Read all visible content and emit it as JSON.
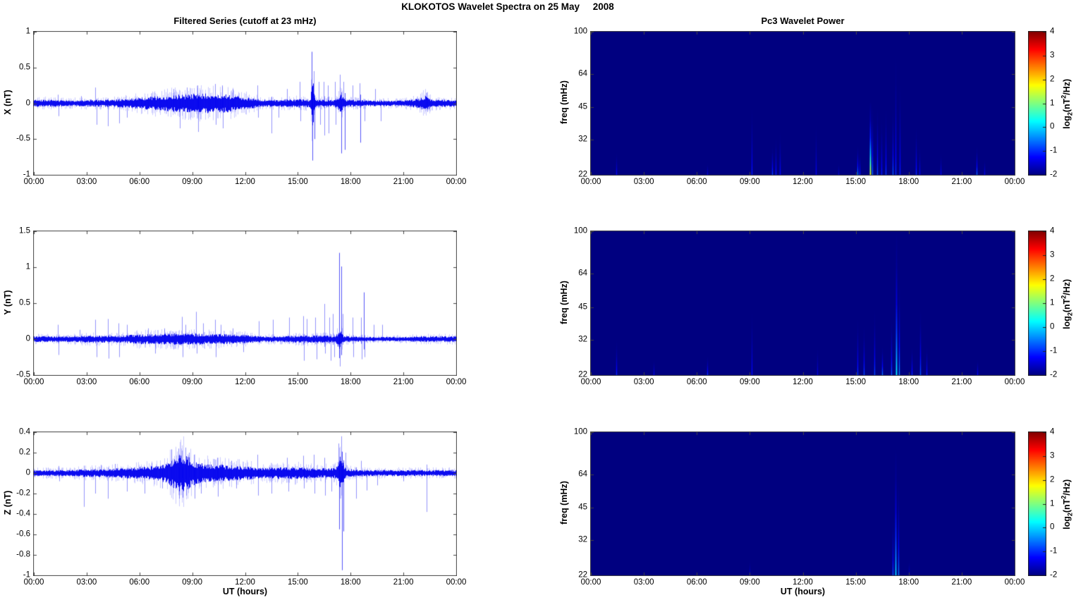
{
  "figure_title": "KLOKOTOS Wavelet Spectra on 25 May     2008",
  "colors": {
    "trace": "#0000ee",
    "spike": "#3232ff",
    "frame": "#444444",
    "background": "#ffffff",
    "heatmap_background": "#000082"
  },
  "colorbar_label": {
    "prefix": "log",
    "sub": "2",
    "mid": "(nT",
    "sup": "2",
    "suffix": "/Hz)"
  },
  "chart_data": [
    {
      "id": "x-filtered-series",
      "type": "line",
      "title": "Filtered Series (cutoff at 23 mHz)",
      "ylabel": "X (nT)",
      "xlabel": "UT (hours)",
      "x_range_hours": [
        0,
        24
      ],
      "x_ticks": [
        "00:00",
        "03:00",
        "06:00",
        "09:00",
        "12:00",
        "15:00",
        "18:00",
        "21:00",
        "00:00"
      ],
      "ylim": [
        -1,
        1
      ],
      "yticks": [
        "1",
        "0.5",
        "0",
        "-0.5",
        "-1"
      ],
      "noise_envelope_hourly_nT": [
        0.05,
        0.05,
        0.04,
        0.05,
        0.05,
        0.06,
        0.08,
        0.1,
        0.12,
        0.13,
        0.14,
        0.13,
        0.09,
        0.05,
        0.05,
        0.06,
        0.05,
        0.05,
        0.05,
        0.04,
        0.04,
        0.04,
        0.07,
        0.05,
        0.05
      ],
      "bursts": [
        [
          15.85,
          0.06,
          0.3
        ],
        [
          17.45,
          0.1,
          0.08
        ],
        [
          22.3,
          0.15,
          0.05
        ]
      ],
      "spikes": [
        [
          1.35,
          0.12
        ],
        [
          1.4,
          -0.18
        ],
        [
          2.7,
          0.1
        ],
        [
          3.5,
          0.22
        ],
        [
          3.55,
          -0.3
        ],
        [
          4.2,
          -0.32
        ],
        [
          4.85,
          -0.28
        ],
        [
          5.3,
          -0.2
        ],
        [
          7.95,
          0.2
        ],
        [
          8.3,
          -0.35
        ],
        [
          8.7,
          0.22
        ],
        [
          9.3,
          0.25
        ],
        [
          9.35,
          -0.4
        ],
        [
          10.3,
          0.27
        ],
        [
          10.35,
          -0.3
        ],
        [
          10.7,
          0.25
        ],
        [
          10.75,
          -0.35
        ],
        [
          11.3,
          0.2
        ],
        [
          12.7,
          0.25
        ],
        [
          12.75,
          -0.2
        ],
        [
          13.5,
          -0.42
        ],
        [
          13.9,
          -0.2
        ],
        [
          14.4,
          0.2
        ],
        [
          15.1,
          0.3
        ],
        [
          15.15,
          -0.25
        ],
        [
          15.8,
          0.72
        ],
        [
          15.83,
          -0.8
        ],
        [
          15.9,
          0.45
        ],
        [
          15.93,
          -0.5
        ],
        [
          16.2,
          0.3
        ],
        [
          16.25,
          -0.3
        ],
        [
          16.45,
          0.3
        ],
        [
          16.5,
          -0.45
        ],
        [
          16.7,
          0.25
        ],
        [
          16.75,
          -0.42
        ],
        [
          17.1,
          0.3
        ],
        [
          17.15,
          -0.3
        ],
        [
          17.4,
          0.4
        ],
        [
          17.45,
          -0.7
        ],
        [
          17.6,
          0.3
        ],
        [
          17.65,
          -0.65
        ],
        [
          18.1,
          0.25
        ],
        [
          18.5,
          0.28
        ],
        [
          18.55,
          -0.55
        ],
        [
          18.8,
          -0.25
        ],
        [
          19.4,
          0.2
        ],
        [
          19.7,
          -0.25
        ],
        [
          22.3,
          0.15
        ],
        [
          22.35,
          -0.12
        ]
      ]
    },
    {
      "id": "y-filtered-series",
      "type": "line",
      "ylabel": "Y (nT)",
      "xlabel": "UT (hours)",
      "x_range_hours": [
        0,
        24
      ],
      "x_ticks": [
        "00:00",
        "03:00",
        "06:00",
        "09:00",
        "12:00",
        "15:00",
        "18:00",
        "21:00",
        "00:00"
      ],
      "ylim": [
        -0.5,
        1.5
      ],
      "yticks": [
        "1.5",
        "1",
        "0.5",
        "0",
        "-0.5"
      ],
      "noise_envelope_hourly_nT": [
        0.04,
        0.04,
        0.04,
        0.05,
        0.05,
        0.05,
        0.07,
        0.07,
        0.08,
        0.08,
        0.07,
        0.07,
        0.06,
        0.04,
        0.04,
        0.05,
        0.05,
        0.05,
        0.04,
        0.03,
        0.03,
        0.03,
        0.04,
        0.04,
        0.04
      ],
      "bursts": [
        [
          17.4,
          0.1,
          0.1
        ]
      ],
      "spikes": [
        [
          1.35,
          0.2
        ],
        [
          1.4,
          -0.22
        ],
        [
          2.6,
          0.13
        ],
        [
          3.5,
          0.27
        ],
        [
          3.55,
          -0.25
        ],
        [
          4.2,
          0.28
        ],
        [
          4.25,
          -0.27
        ],
        [
          4.8,
          0.22
        ],
        [
          4.85,
          -0.25
        ],
        [
          5.3,
          0.2
        ],
        [
          6.5,
          0.15
        ],
        [
          6.9,
          -0.2
        ],
        [
          7.4,
          0.15
        ],
        [
          8.4,
          0.31
        ],
        [
          8.45,
          -0.25
        ],
        [
          8.6,
          0.2
        ],
        [
          9.2,
          0.38
        ],
        [
          9.25,
          -0.2
        ],
        [
          9.6,
          0.22
        ],
        [
          10.3,
          0.27
        ],
        [
          10.35,
          -0.25
        ],
        [
          10.6,
          0.2
        ],
        [
          11.3,
          0.15
        ],
        [
          11.9,
          -0.18
        ],
        [
          12.8,
          0.25
        ],
        [
          13.6,
          0.27
        ],
        [
          14.5,
          0.3
        ],
        [
          15.3,
          0.32
        ],
        [
          15.35,
          -0.3
        ],
        [
          15.5,
          0.28
        ],
        [
          16.0,
          0.3
        ],
        [
          16.05,
          -0.28
        ],
        [
          16.5,
          0.49
        ],
        [
          16.55,
          -0.2
        ],
        [
          16.8,
          0.3
        ],
        [
          16.85,
          -0.3
        ],
        [
          17.0,
          0.35
        ],
        [
          17.05,
          -0.25
        ],
        [
          17.35,
          1.2
        ],
        [
          17.4,
          -0.38
        ],
        [
          17.45,
          1.01
        ],
        [
          17.55,
          0.35
        ],
        [
          18.1,
          0.3
        ],
        [
          18.15,
          -0.25
        ],
        [
          18.6,
          0.3
        ],
        [
          18.65,
          -0.28
        ],
        [
          18.75,
          0.65
        ],
        [
          18.8,
          -0.25
        ],
        [
          19.3,
          0.2
        ],
        [
          19.8,
          0.2
        ]
      ]
    },
    {
      "id": "z-filtered-series",
      "type": "line",
      "ylabel": "Z (nT)",
      "xlabel": "UT (hours)",
      "x_range_hours": [
        0,
        24
      ],
      "x_ticks": [
        "00:00",
        "03:00",
        "06:00",
        "09:00",
        "12:00",
        "15:00",
        "18:00",
        "21:00",
        "00:00"
      ],
      "ylim": [
        -1,
        0.4
      ],
      "yticks": [
        "0.4",
        "0.2",
        "0",
        "-0.2",
        "-0.4",
        "-0.6",
        "-0.8",
        "-1"
      ],
      "noise_envelope_hourly_nT": [
        0.03,
        0.03,
        0.03,
        0.04,
        0.04,
        0.05,
        0.06,
        0.07,
        0.12,
        0.1,
        0.09,
        0.08,
        0.07,
        0.05,
        0.06,
        0.06,
        0.05,
        0.05,
        0.04,
        0.03,
        0.03,
        0.03,
        0.03,
        0.03,
        0.03
      ],
      "bursts": [
        [
          8.45,
          0.4,
          0.08
        ],
        [
          17.45,
          0.12,
          0.12
        ]
      ],
      "spikes": [
        [
          1.4,
          0.07
        ],
        [
          1.45,
          -0.08
        ],
        [
          2.85,
          -0.33
        ],
        [
          3.5,
          -0.2
        ],
        [
          3.8,
          0.08
        ],
        [
          4.2,
          -0.25
        ],
        [
          4.6,
          0.09
        ],
        [
          5.3,
          -0.18
        ],
        [
          6.3,
          -0.2
        ],
        [
          6.7,
          0.1
        ],
        [
          7.3,
          -0.15
        ],
        [
          7.8,
          0.23
        ],
        [
          8.2,
          0.24
        ],
        [
          8.25,
          -0.25
        ],
        [
          8.4,
          0.22
        ],
        [
          8.45,
          -0.24
        ],
        [
          8.6,
          0.25
        ],
        [
          8.65,
          -0.22
        ],
        [
          8.8,
          0.2
        ],
        [
          9.1,
          0.18
        ],
        [
          9.15,
          -0.25
        ],
        [
          9.5,
          -0.2
        ],
        [
          10.4,
          0.15
        ],
        [
          10.45,
          -0.23
        ],
        [
          11.2,
          0.12
        ],
        [
          11.5,
          -0.15
        ],
        [
          12.7,
          0.18
        ],
        [
          12.75,
          -0.22
        ],
        [
          13.5,
          -0.2
        ],
        [
          14.4,
          0.15
        ],
        [
          14.45,
          -0.18
        ],
        [
          15.3,
          0.17
        ],
        [
          15.35,
          -0.15
        ],
        [
          15.9,
          0.18
        ],
        [
          15.95,
          -0.2
        ],
        [
          16.5,
          0.15
        ],
        [
          16.55,
          -0.22
        ],
        [
          16.9,
          -0.18
        ],
        [
          17.3,
          0.29
        ],
        [
          17.35,
          -0.55
        ],
        [
          17.45,
          0.36
        ],
        [
          17.5,
          -0.95
        ],
        [
          17.6,
          -0.57
        ],
        [
          17.7,
          0.2
        ],
        [
          18.3,
          -0.25
        ],
        [
          18.6,
          0.12
        ],
        [
          18.9,
          -0.17
        ],
        [
          19.5,
          -0.12
        ],
        [
          21.0,
          -0.08
        ],
        [
          22.3,
          -0.38
        ]
      ]
    },
    {
      "id": "x-wavelet-power",
      "type": "heatmap",
      "title": "Pc3 Wavelet Power",
      "ylabel": "freq (mHz)",
      "xlabel": "UT (hours)",
      "x_range_hours": [
        0,
        24
      ],
      "x_ticks": [
        "00:00",
        "03:00",
        "06:00",
        "09:00",
        "12:00",
        "15:00",
        "18:00",
        "21:00",
        "00:00"
      ],
      "yscale": "log",
      "ylim_mHz": [
        22,
        100
      ],
      "yticks": [
        "100",
        "64",
        "45",
        "32",
        "22"
      ],
      "background_log2_power": -2,
      "colorbar": {
        "ticks": [
          "4",
          "3",
          "2",
          "1",
          "0",
          "-1",
          "-2"
        ],
        "range": [
          -2,
          4
        ]
      },
      "streaks_t_fmax_log2power": [
        [
          1.45,
          28,
          -1.2
        ],
        [
          6.6,
          25,
          -1.4
        ],
        [
          9.1,
          46,
          -1.1
        ],
        [
          10.25,
          30,
          -0.8
        ],
        [
          10.45,
          33,
          -1.1
        ],
        [
          10.7,
          35,
          -1.2
        ],
        [
          12.75,
          38,
          -1.3
        ],
        [
          14.0,
          25,
          -1.5
        ],
        [
          15.1,
          30,
          -0.4
        ],
        [
          15.2,
          28,
          -1.0
        ],
        [
          15.8,
          48,
          1.6
        ],
        [
          15.95,
          46,
          -0.6
        ],
        [
          16.2,
          45,
          -0.8
        ],
        [
          16.45,
          40,
          -1.1
        ],
        [
          16.7,
          45,
          -0.9
        ],
        [
          17.1,
          45,
          -0.7
        ],
        [
          17.25,
          80,
          -1.0
        ],
        [
          17.5,
          60,
          -1.1
        ],
        [
          18.4,
          37,
          -1.0
        ],
        [
          18.6,
          30,
          -1.3
        ],
        [
          19.8,
          28,
          -1.3
        ],
        [
          21.85,
          30,
          -0.6
        ],
        [
          22.3,
          26,
          -1.3
        ]
      ]
    },
    {
      "id": "y-wavelet-power",
      "type": "heatmap",
      "ylabel": "freq (mHz)",
      "xlabel": "UT (hours)",
      "x_range_hours": [
        0,
        24
      ],
      "x_ticks": [
        "00:00",
        "03:00",
        "06:00",
        "09:00",
        "12:00",
        "15:00",
        "18:00",
        "21:00",
        "00:00"
      ],
      "yscale": "log",
      "ylim_mHz": [
        22,
        100
      ],
      "yticks": [
        "100",
        "64",
        "45",
        "32",
        "22"
      ],
      "background_log2_power": -2,
      "colorbar": {
        "ticks": [
          "4",
          "3",
          "2",
          "1",
          "0",
          "-1",
          "-2"
        ],
        "range": [
          -2,
          4
        ]
      },
      "streaks_t_fmax_log2power": [
        [
          1.45,
          32,
          -1.0
        ],
        [
          3.55,
          26,
          -1.3
        ],
        [
          6.6,
          27,
          -0.9
        ],
        [
          9.1,
          44,
          -1.2
        ],
        [
          12.8,
          30,
          -1.4
        ],
        [
          15.1,
          40,
          -0.9
        ],
        [
          15.45,
          37,
          -0.8
        ],
        [
          16.05,
          44,
          -0.8
        ],
        [
          16.5,
          30,
          -0.5
        ],
        [
          17.0,
          40,
          -0.7
        ],
        [
          17.3,
          100,
          0.2
        ],
        [
          17.45,
          60,
          -0.4
        ],
        [
          18.15,
          30,
          -1.0
        ],
        [
          18.65,
          44,
          -0.7
        ],
        [
          19.0,
          30,
          -1.1
        ],
        [
          21.9,
          26,
          -1.2
        ]
      ]
    },
    {
      "id": "z-wavelet-power",
      "type": "heatmap",
      "ylabel": "freq (mHz)",
      "xlabel": "UT (hours)",
      "x_range_hours": [
        0,
        24
      ],
      "x_ticks": [
        "00:00",
        "03:00",
        "06:00",
        "09:00",
        "12:00",
        "15:00",
        "18:00",
        "21:00",
        "00:00"
      ],
      "yscale": "log",
      "ylim_mHz": [
        22,
        100
      ],
      "yticks": [
        "100",
        "64",
        "45",
        "32",
        "22"
      ],
      "background_log2_power": -2,
      "colorbar": {
        "ticks": [
          "4",
          "3",
          "2",
          "1",
          "0",
          "-1",
          "-2"
        ],
        "range": [
          -2,
          4
        ]
      },
      "streaks_t_fmax_log2power": [
        [
          9.0,
          26,
          -1.5
        ],
        [
          17.1,
          40,
          -0.7
        ],
        [
          17.25,
          85,
          0.0
        ],
        [
          17.4,
          60,
          -0.5
        ],
        [
          18.0,
          26,
          -1.5
        ]
      ]
    }
  ]
}
